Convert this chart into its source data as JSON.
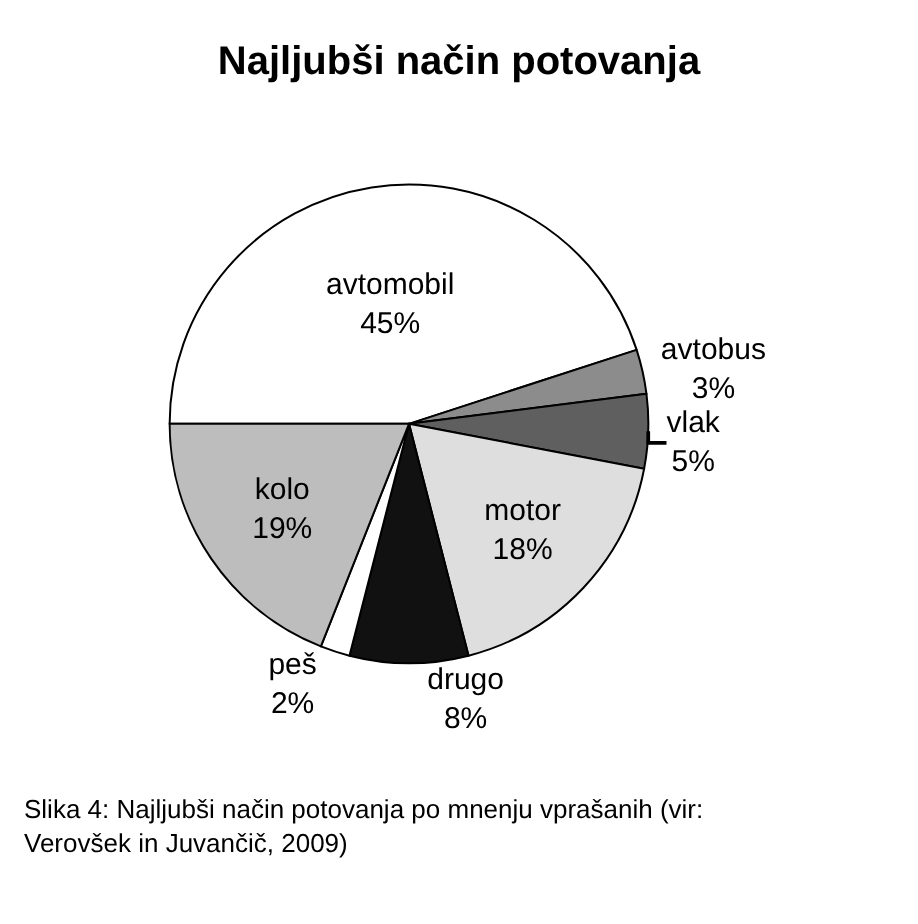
{
  "chart_data": {
    "type": "pie",
    "title": "Najljubši način potovanja",
    "categories": [
      "avtomobil",
      "avtobus",
      "vlak",
      "motor",
      "drugo",
      "peš",
      "kolo"
    ],
    "values": [
      45,
      3,
      5,
      18,
      8,
      2,
      19
    ],
    "value_labels": [
      "45%",
      "3%",
      "5%",
      "18%",
      "8%",
      "2%",
      "19%"
    ],
    "colors": [
      "#ffffff",
      "#8c8c8c",
      "#5f5f5f",
      "#dedede",
      "#111111",
      "#ffffff",
      "#bdbdbd"
    ],
    "legend": false,
    "annotations": [
      "Slika 4: Najljubši način potovanja po mnenju vprašanih (vir: Verovšek in Juvančič, 2009)"
    ]
  }
}
